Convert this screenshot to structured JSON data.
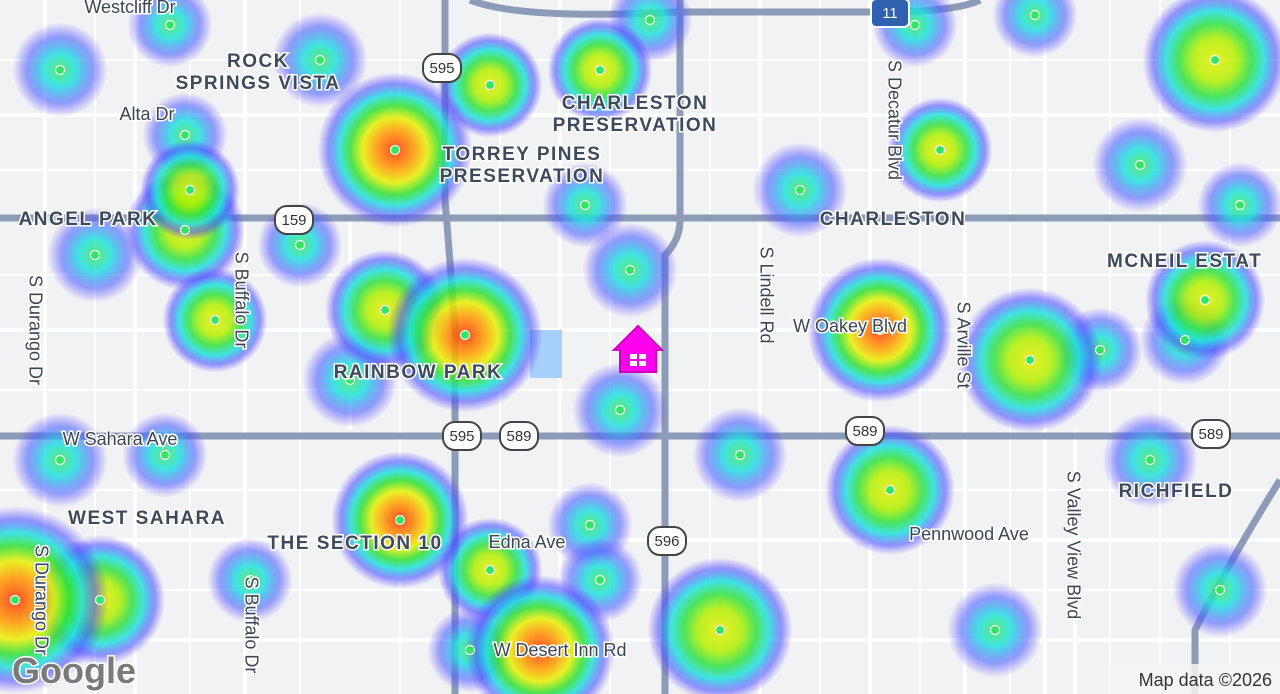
{
  "map": {
    "neighborhoods": [
      [
        "ROCK",
        "SPRINGS VISTA"
      ],
      [
        "CHARLESTON",
        "PRESERVATION"
      ],
      [
        "TORREY PINES",
        "PRESERVATION"
      ],
      [
        "ANGEL PARK"
      ],
      [
        "CHARLESTON"
      ],
      [
        "MCNEIL ESTAT"
      ],
      [
        "RAINBOW PARK"
      ],
      [
        "WEST SAHARA"
      ],
      [
        "THE SECTION 10"
      ],
      [
        "RICHFIELD"
      ]
    ],
    "streets": [
      "Westcliff Dr",
      "Alta Dr",
      "S Durango Dr",
      "S Buffalo Dr",
      "S Decatur Blvd",
      "S Lindell Rd",
      "W Oakey Blvd",
      "S Arville St",
      "W Sahara Ave",
      "Edna Ave",
      "Pennwood Ave",
      "S Valley View Blvd",
      "W Desert Inn Rd",
      "S Durango Dr",
      "S Buffalo Dr"
    ],
    "shields": [
      "595",
      "159",
      "595",
      "589",
      "589",
      "589",
      "596",
      "11"
    ],
    "attribution": "Map data ©2026",
    "logo": "Google"
  }
}
